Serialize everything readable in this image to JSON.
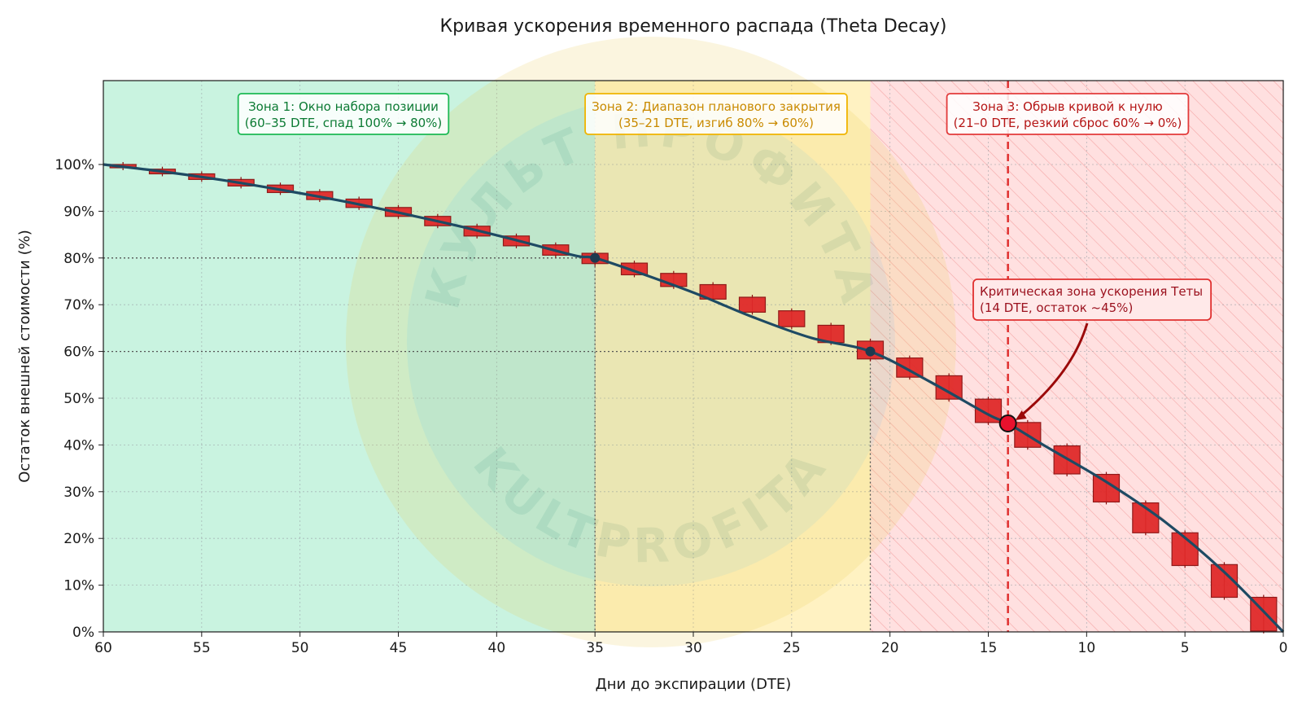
{
  "chart_data": {
    "type": "line",
    "title": "Кривая ускорения временного распада (Theta Decay)",
    "xlabel": "Дни до экспирации (DTE)",
    "ylabel": "Остаток внешней стоимости (%)",
    "xlim": [
      60,
      0
    ],
    "ylim": [
      0,
      100
    ],
    "x_reversed": true,
    "grid": true,
    "x_ticks": [
      60,
      55,
      50,
      45,
      40,
      35,
      30,
      25,
      20,
      15,
      10,
      5,
      0
    ],
    "x_tick_labels": [
      "60",
      "55",
      "50",
      "45",
      "40",
      "35",
      "30",
      "25",
      "20",
      "15",
      "10",
      "5",
      "0"
    ],
    "y_ticks": [
      0,
      10,
      20,
      30,
      40,
      50,
      60,
      70,
      80,
      90,
      100
    ],
    "y_tick_labels": [
      "0%",
      "10%",
      "20%",
      "30%",
      "40%",
      "50%",
      "60%",
      "70%",
      "80%",
      "90%",
      "100%"
    ],
    "zones": [
      {
        "from": 60,
        "to": 35,
        "color": "#c9f3e0",
        "border": "#1db954",
        "text_color": "#0b7a33",
        "line1": "Зона 1: Окно набора позиции",
        "line2": "(60–35 DTE, спад 100% → 80%)"
      },
      {
        "from": 35,
        "to": 21,
        "color": "#fff2c2",
        "border": "#f0b400",
        "text_color": "#c98a00",
        "line1": "Зона 2: Диапазон планового закрытия",
        "line2": "(35–21 DTE, изгиб 80% → 60%)"
      },
      {
        "from": 21,
        "to": 0,
        "color": "#ffe0e0",
        "border": "#e23a3a",
        "text_color": "#b51515",
        "line1": "Зона 3: Обрыв кривой к нулю",
        "line2": "(21–0 DTE, резкий сброс 60% → 0%)"
      }
    ],
    "curve": {
      "x": [
        60,
        57,
        54,
        51,
        48,
        45,
        42,
        39,
        36,
        35,
        33,
        30,
        27,
        24,
        21,
        18,
        15,
        14,
        12,
        9,
        6,
        3,
        0
      ],
      "y": [
        100,
        98.5,
        96.7,
        94.6,
        92.3,
        89.7,
        86.9,
        83.8,
        80.5,
        80,
        77.2,
        72.6,
        67.4,
        62.9,
        60,
        53.6,
        46.5,
        44.6,
        39.5,
        32.1,
        23.5,
        12.8,
        0
      ],
      "color": "#1e4a63"
    },
    "candles": [
      {
        "x": 59,
        "open": 100,
        "close": 99.3
      },
      {
        "x": 57,
        "open": 99.0,
        "close": 98.0
      },
      {
        "x": 55,
        "open": 98.0,
        "close": 96.8
      },
      {
        "x": 53,
        "open": 96.8,
        "close": 95.4
      },
      {
        "x": 51,
        "open": 95.6,
        "close": 94.0
      },
      {
        "x": 49,
        "open": 94.2,
        "close": 92.5
      },
      {
        "x": 47,
        "open": 92.6,
        "close": 90.8
      },
      {
        "x": 45,
        "open": 90.8,
        "close": 88.9
      },
      {
        "x": 43,
        "open": 88.9,
        "close": 86.9
      },
      {
        "x": 41,
        "open": 86.8,
        "close": 84.7
      },
      {
        "x": 39,
        "open": 84.7,
        "close": 82.6
      },
      {
        "x": 37,
        "open": 82.8,
        "close": 80.6
      },
      {
        "x": 35,
        "open": 81.0,
        "close": 78.8
      },
      {
        "x": 33,
        "open": 78.9,
        "close": 76.4
      },
      {
        "x": 31,
        "open": 76.7,
        "close": 73.9
      },
      {
        "x": 29,
        "open": 74.3,
        "close": 71.2
      },
      {
        "x": 27,
        "open": 71.6,
        "close": 68.4
      },
      {
        "x": 25,
        "open": 68.7,
        "close": 65.3
      },
      {
        "x": 23,
        "open": 65.6,
        "close": 61.9
      },
      {
        "x": 21,
        "open": 62.2,
        "close": 58.4
      },
      {
        "x": 19,
        "open": 58.6,
        "close": 54.5
      },
      {
        "x": 17,
        "open": 54.8,
        "close": 49.8
      },
      {
        "x": 15,
        "open": 49.8,
        "close": 44.8
      },
      {
        "x": 13,
        "open": 44.8,
        "close": 39.5
      },
      {
        "x": 11,
        "open": 39.8,
        "close": 33.8
      },
      {
        "x": 9,
        "open": 33.7,
        "close": 27.8
      },
      {
        "x": 7,
        "open": 27.6,
        "close": 21.2
      },
      {
        "x": 5,
        "open": 21.2,
        "close": 14.2
      },
      {
        "x": 3,
        "open": 14.4,
        "close": 7.4
      },
      {
        "x": 1,
        "open": 7.4,
        "close": 0.2
      }
    ],
    "marker_points": [
      {
        "x": 35,
        "y": 80
      },
      {
        "x": 21,
        "y": 60
      }
    ],
    "critical": {
      "x": 14,
      "y": 44.6,
      "line1": "Критическая зона ускорения Теты",
      "line2": "(14 DTE, остаток ~45%)"
    }
  },
  "watermark": {
    "top_text": "КУЛЬТ ПРОФИТА",
    "bottom_text": "KULTPROFITA"
  }
}
